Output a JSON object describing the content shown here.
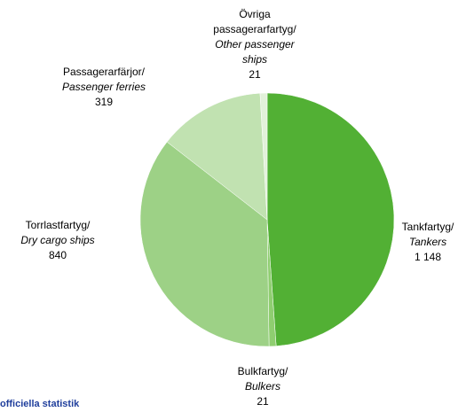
{
  "chart_data": {
    "type": "pie",
    "categories": [
      "Tankfartyg/",
      "Bulkfartyg/",
      "Torrlastfartyg/",
      "Passagerarfärjor/",
      "Övriga passagerarfartyg/"
    ],
    "categories_en": [
      "Tankers",
      "Bulkers",
      "Dry cargo ships",
      "Passenger ferries",
      "Other passenger ships"
    ],
    "values": [
      1148,
      21,
      840,
      319,
      21
    ],
    "value_labels": [
      "1 148",
      "21",
      "840",
      "319",
      "21"
    ],
    "colors": [
      "#52b034",
      "#8fce70",
      "#9dd186",
      "#c1e2b1",
      "#e2f1da"
    ],
    "footer": "officiella statistik"
  }
}
